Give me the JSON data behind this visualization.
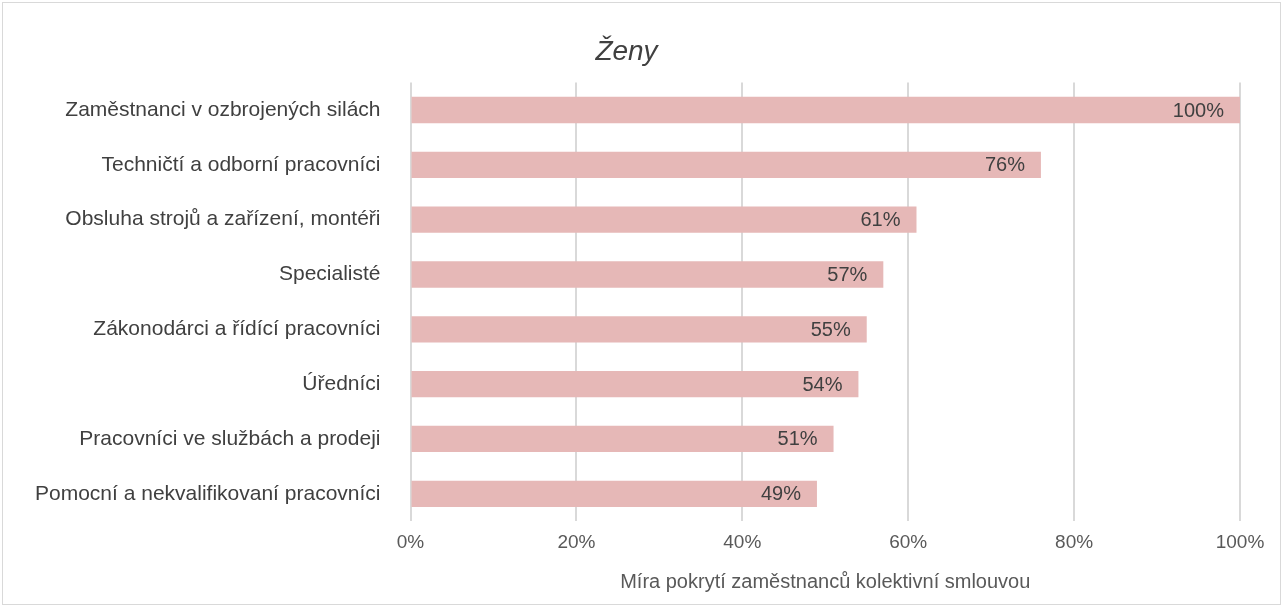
{
  "chart_data": {
    "type": "bar",
    "orientation": "horizontal",
    "title": "Ženy",
    "xlabel": "Míra pokrytí zaměstnanců kolektivní smlouvou",
    "categories": [
      "Zaměstnanci v ozbrojených silách",
      "Techničtí a odborní pracovníci",
      "Obsluha strojů a zařízení, montéři",
      "Specialisté",
      "Zákonodárci a řídící pracovníci",
      "Úředníci",
      "Pracovníci ve službách a prodeji",
      "Pomocní a nekvalifikovaní pracovníci"
    ],
    "values": [
      100,
      76,
      61,
      57,
      55,
      54,
      51,
      49
    ],
    "value_labels": [
      "100%",
      "76%",
      "61%",
      "57%",
      "55%",
      "54%",
      "51%",
      "49%"
    ],
    "color": "#e6b8b7",
    "xlim": [
      0,
      100
    ],
    "xticks": [
      {
        "value": 0,
        "label": "0%"
      },
      {
        "value": 20,
        "label": "20%"
      },
      {
        "value": 40,
        "label": "40%"
      },
      {
        "value": 60,
        "label": "60%"
      },
      {
        "value": 80,
        "label": "80%"
      },
      {
        "value": 100,
        "label": "100%"
      }
    ],
    "grid": "x",
    "legend": false
  }
}
